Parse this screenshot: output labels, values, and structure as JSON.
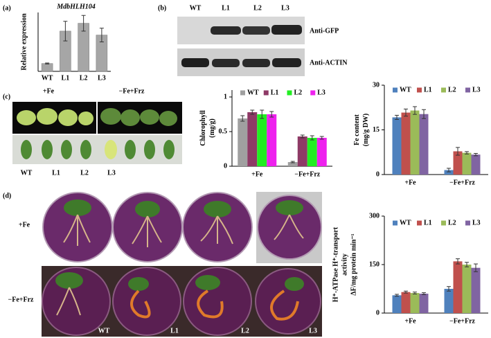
{
  "panels": {
    "a": "(a)",
    "b": "(b)",
    "c": "(c)",
    "d": "(d)"
  },
  "blot": {
    "lanes": [
      "WT",
      "L1",
      "L2",
      "L3"
    ],
    "rows": [
      "Anti-GFP",
      "Anti-ACTIN"
    ]
  },
  "leaves": {
    "conditions": [
      "+Fe",
      "−Fe+Frz"
    ],
    "lines": [
      "WT",
      "L1",
      "L2",
      "L3"
    ]
  },
  "plates": {
    "conditions": [
      "+Fe",
      "−Fe+Frz"
    ],
    "lines": [
      "WT",
      "L1",
      "L2",
      "L3"
    ]
  },
  "chart_data": [
    {
      "type": "bar",
      "title": "MdbHLH104",
      "ylabel": [
        "Relative expression"
      ],
      "categories": [
        "WT",
        "L1",
        "L2",
        "L3"
      ],
      "values": [
        0.8,
        4.1,
        4.9,
        3.7
      ],
      "errors": [
        0.05,
        1.0,
        0.8,
        0.7
      ],
      "color": "#a6a6a6",
      "ylim": [
        0,
        6
      ]
    },
    {
      "type": "grouped_bar",
      "ylabel": [
        "Chlorophyll",
        "(mg/g)"
      ],
      "categories": [
        "+Fe",
        "−Fe+Frz"
      ],
      "series": [
        {
          "name": "WT",
          "color": "#a0a0a0",
          "values": [
            0.69,
            0.06
          ],
          "errors": [
            0.04,
            0.01
          ]
        },
        {
          "name": "L1",
          "color": "#8e3a66",
          "values": [
            0.78,
            0.43
          ],
          "errors": [
            0.03,
            0.02
          ]
        },
        {
          "name": "L2",
          "color": "#22ee22",
          "values": [
            0.75,
            0.41
          ],
          "errors": [
            0.06,
            0.03
          ]
        },
        {
          "name": "L3",
          "color": "#ee22ee",
          "values": [
            0.75,
            0.41
          ],
          "errors": [
            0.04,
            0.02
          ]
        }
      ],
      "ylim": [
        0,
        1.1
      ],
      "yticks": [
        0,
        0.5,
        1
      ]
    },
    {
      "type": "grouped_bar",
      "ylabel": [
        "Fe content",
        "(mg/g DW)"
      ],
      "categories": [
        "+Fe",
        "−Fe+Frz"
      ],
      "series": [
        {
          "name": "WT",
          "color": "#4f81bd",
          "values": [
            19.2,
            1.5
          ],
          "errors": [
            0.7,
            0.6
          ]
        },
        {
          "name": "L1",
          "color": "#c0504d",
          "values": [
            20.8,
            7.8
          ],
          "errors": [
            1.2,
            1.3
          ]
        },
        {
          "name": "L2",
          "color": "#9bbb59",
          "values": [
            21.5,
            7.3
          ],
          "errors": [
            1.3,
            0.4
          ]
        },
        {
          "name": "L3",
          "color": "#8064a2",
          "values": [
            20.3,
            6.7
          ],
          "errors": [
            1.5,
            0.4
          ]
        }
      ],
      "ylim": [
        0,
        30
      ],
      "yticks": [
        0,
        15,
        30
      ]
    },
    {
      "type": "grouped_bar",
      "ylabel": [
        "H⁺-ATPase H⁺-transport",
        "activity",
        "ΔF/mg protein min⁻¹"
      ],
      "categories": [
        "+Fe",
        "−Fe+Frz"
      ],
      "series": [
        {
          "name": "WT",
          "color": "#4f81bd",
          "values": [
            55,
            75
          ],
          "errors": [
            3,
            7
          ]
        },
        {
          "name": "L1",
          "color": "#c0504d",
          "values": [
            65,
            160
          ],
          "errors": [
            3,
            8
          ]
        },
        {
          "name": "L2",
          "color": "#9bbb59",
          "values": [
            62,
            150
          ],
          "errors": [
            3,
            7
          ]
        },
        {
          "name": "L3",
          "color": "#8064a2",
          "values": [
            60,
            140
          ],
          "errors": [
            3,
            12
          ]
        }
      ],
      "ylim": [
        0,
        300
      ],
      "yticks": [
        0,
        150,
        300
      ]
    }
  ]
}
